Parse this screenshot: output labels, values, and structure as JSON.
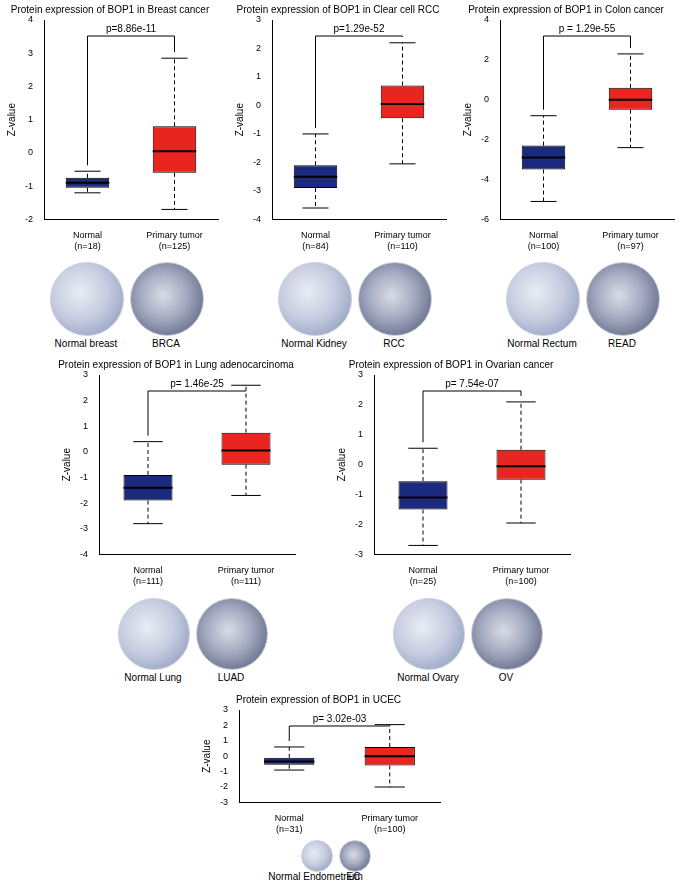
{
  "chart_data": [
    {
      "type": "box",
      "title": "Protein expression of BOP1 in Breast cancer",
      "y_label": "Z-value",
      "annotation": "p=8.86e-11",
      "categories": [
        "Normal\n(n=18)",
        "Primary tumor\n(n=125)"
      ],
      "colors": [
        "#1c2a7e",
        "#e8251f"
      ],
      "boxes": [
        {
          "min": -1.2,
          "q1": -1.05,
          "median": -0.9,
          "q3": -0.75,
          "max": -0.55
        },
        {
          "min": -1.7,
          "q1": -0.6,
          "median": 0.05,
          "q3": 0.8,
          "max": 2.85
        }
      ],
      "ylim": [
        -2,
        4
      ],
      "yticks": [
        -2,
        -1,
        0,
        1,
        2,
        3,
        4
      ],
      "grid": false,
      "image_labels": [
        "Normal breast",
        "BRCA"
      ]
    },
    {
      "type": "box",
      "title": "Protein expression of BOP1 in Clear cell RCC",
      "y_label": "Z-value",
      "annotation": "p=1.29e-52",
      "categories": [
        "Normal\n(n=84)",
        "Primary tumor\n(n=110)"
      ],
      "colors": [
        "#1c2a7e",
        "#e8251f"
      ],
      "boxes": [
        {
          "min": -3.6,
          "q1": -2.9,
          "median": -2.5,
          "q3": -2.1,
          "max": -1.0
        },
        {
          "min": -2.05,
          "q1": -0.45,
          "median": 0.05,
          "q3": 0.7,
          "max": 2.2
        }
      ],
      "ylim": [
        -4,
        3
      ],
      "yticks": [
        -4,
        -3,
        -2,
        -1,
        0,
        1,
        2,
        3
      ],
      "grid": false,
      "image_labels": [
        "Normal Kidney",
        "RCC"
      ]
    },
    {
      "type": "box",
      "title": "Protein expression of BOP1 in Colon cancer",
      "y_label": "Z-value",
      "annotation": "p = 1.29e-55",
      "categories": [
        "Normal\n(n=100)",
        "Primary tumor\n(n=97)"
      ],
      "colors": [
        "#1c2a7e",
        "#e8251f"
      ],
      "boxes": [
        {
          "min": -5.1,
          "q1": -3.5,
          "median": -2.9,
          "q3": -2.3,
          "max": -0.8
        },
        {
          "min": -2.4,
          "q1": -0.5,
          "median": 0.0,
          "q3": 0.6,
          "max": 2.3
        }
      ],
      "ylim": [
        -6,
        4
      ],
      "yticks": [
        -6,
        -4,
        -2,
        0,
        2,
        4
      ],
      "grid": false,
      "image_labels": [
        "Normal Rectum",
        "READ"
      ]
    },
    {
      "type": "box",
      "title": "Protein expression of BOP1 in Lung adenocarcinoma",
      "y_label": "Z-value",
      "annotation": "p= 1.46e-25",
      "categories": [
        "Normal\n(n=111)",
        "Primary tumor\n(n=111)"
      ],
      "colors": [
        "#1c2a7e",
        "#e8251f"
      ],
      "boxes": [
        {
          "min": -2.8,
          "q1": -1.9,
          "median": -1.4,
          "q3": -0.9,
          "max": 0.4
        },
        {
          "min": -1.7,
          "q1": -0.5,
          "median": 0.05,
          "q3": 0.75,
          "max": 2.6
        }
      ],
      "ylim": [
        -4,
        3
      ],
      "yticks": [
        -4,
        -3,
        -2,
        -1,
        0,
        1,
        2,
        3
      ],
      "grid": false,
      "image_labels": [
        "Normal Lung",
        "LUAD"
      ]
    },
    {
      "type": "box",
      "title": "Protein expression of BOP1 in Ovarian cancer",
      "y_label": "Z-value",
      "annotation": "p= 7.54e-07",
      "categories": [
        "Normal\n(n=25)",
        "Primary tumor\n(n=100)"
      ],
      "colors": [
        "#1c2a7e",
        "#e8251f"
      ],
      "boxes": [
        {
          "min": -2.7,
          "q1": -1.5,
          "median": -1.1,
          "q3": -0.55,
          "max": 0.55
        },
        {
          "min": -1.95,
          "q1": -0.5,
          "median": -0.05,
          "q3": 0.5,
          "max": 2.1
        }
      ],
      "ylim": [
        -3,
        3
      ],
      "yticks": [
        -3,
        -2,
        -1,
        0,
        1,
        2,
        3
      ],
      "grid": false,
      "image_labels": [
        "Normal Ovary",
        "OV"
      ]
    },
    {
      "type": "box",
      "title": "Protein expression of BOP1 in UCEC",
      "y_label": "Z-value",
      "annotation": "p= 3.02e-03",
      "categories": [
        "Normal\n(n=31)",
        "Primary tumor\n(n=100)"
      ],
      "colors": [
        "#1c2a7e",
        "#e8251f"
      ],
      "boxes": [
        {
          "min": -0.9,
          "q1": -0.55,
          "median": -0.35,
          "q3": -0.1,
          "max": 0.6
        },
        {
          "min": -2.0,
          "q1": -0.6,
          "median": 0.0,
          "q3": 0.6,
          "max": 2.05
        }
      ],
      "ylim": [
        -3,
        3
      ],
      "yticks": [
        -3,
        -2,
        -1,
        0,
        1,
        2,
        3
      ],
      "grid": false,
      "image_labels": [
        "Normal Endometrium",
        "EC"
      ]
    }
  ]
}
